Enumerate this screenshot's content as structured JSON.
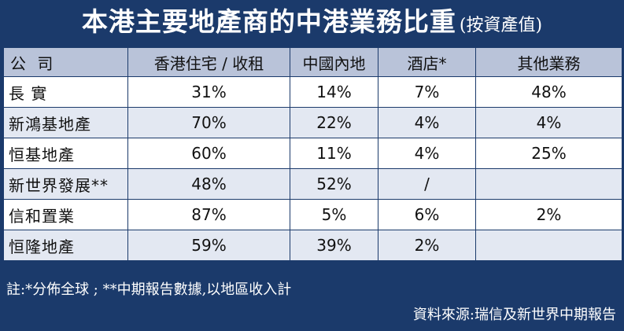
{
  "title": {
    "main": "本港主要地產商的中港業務比重",
    "sub": "(按資產值)"
  },
  "table": {
    "headers": [
      "公  司",
      "香港住宅 / 收租",
      "中國內地",
      "酒店*",
      "其他業務"
    ],
    "rows": [
      {
        "company": "長  實",
        "values": [
          "31%",
          "14%",
          "7%",
          "48%"
        ]
      },
      {
        "company": "新鴻基地產",
        "values": [
          "70%",
          "22%",
          "4%",
          "4%"
        ]
      },
      {
        "company": "恒基地產",
        "values": [
          "60%",
          "11%",
          "4%",
          "25%"
        ]
      },
      {
        "company": "新世界發展**",
        "values": [
          "48%",
          "52%",
          "/",
          ""
        ]
      },
      {
        "company": "信和置業",
        "values": [
          "87%",
          "5%",
          "6%",
          "2%"
        ]
      },
      {
        "company": "恒隆地產",
        "values": [
          "59%",
          "39%",
          "2%",
          ""
        ]
      }
    ]
  },
  "note": "註:*分佈全球 ; **中期報告數據,以地區收入計",
  "source": "資料來源:瑞信及新世界中期報告",
  "colors": {
    "background": "#1b3a6b",
    "header_row": "#b9c3d9",
    "row_light": "#ffffff",
    "row_alt": "#e3e8f2"
  }
}
